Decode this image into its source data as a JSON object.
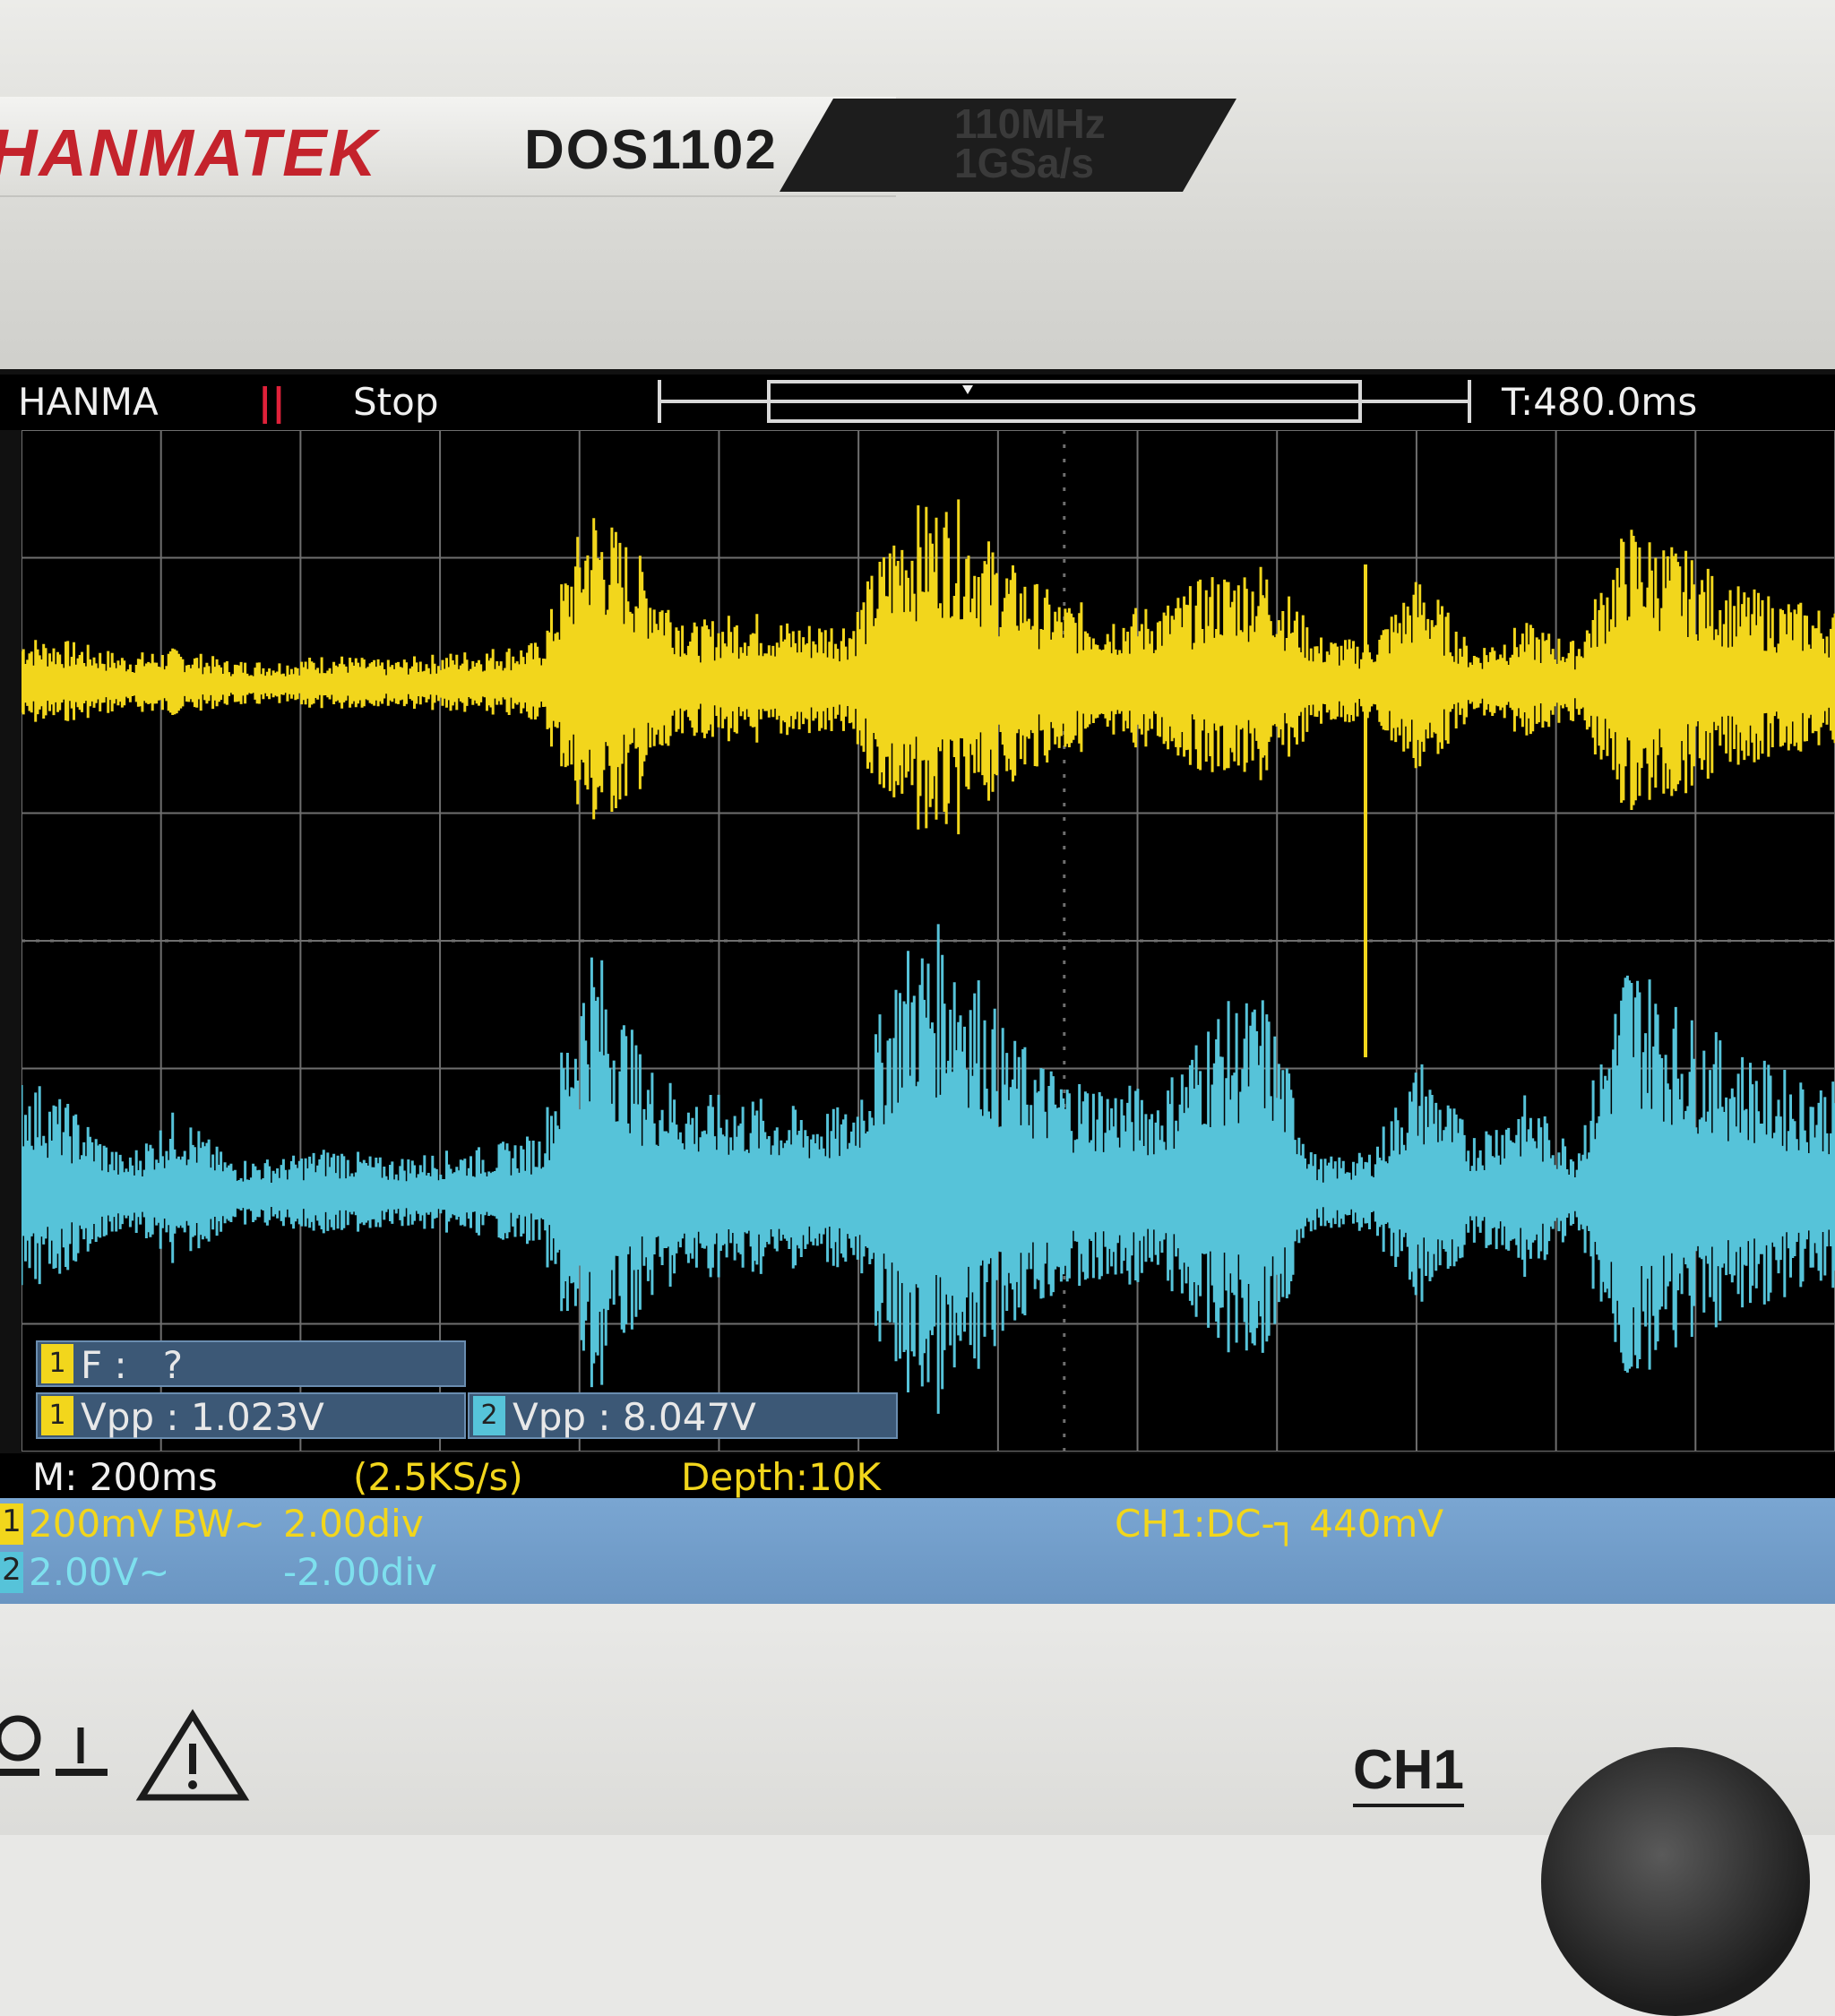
{
  "device": {
    "brand": "HANMATEK",
    "model": "DOS1102",
    "spec_line1": "110MHz",
    "spec_line2": "1GSa/s",
    "channel_button": "CH1"
  },
  "status_bar": {
    "logo": "HANMA",
    "run_icon": "||",
    "run_state": "Stop",
    "trigger_time": "T:480.0ms"
  },
  "measurements": {
    "frequency": {
      "channel": "1",
      "label": "F :",
      "value": "?"
    },
    "ch1_vpp": {
      "channel": "1",
      "label": "Vpp :",
      "value": "1.023V"
    },
    "ch2_vpp": {
      "channel": "2",
      "label": "Vpp :",
      "value": "8.047V"
    }
  },
  "info_row": {
    "timebase": "M: 200ms",
    "sample_rate": "(2.5KS/s)",
    "depth": "Depth:10K"
  },
  "channels": [
    {
      "id": "1",
      "scale": "200mV",
      "bw": "BW~",
      "offset": "2.00div",
      "color": "#f2d61c"
    },
    {
      "id": "2",
      "scale": "2.00V~",
      "bw": "",
      "offset": "-2.00div",
      "color": "#56c3d9"
    }
  ],
  "trigger": {
    "text": "CH1:DC-",
    "level": "440mV"
  },
  "colors": {
    "ch1": "#f2d61c",
    "ch2": "#56c3d9",
    "grid": "#6f6f6f",
    "screen_bg": "#000000"
  },
  "chart_data": {
    "type": "line",
    "grid_divisions": {
      "x": 13,
      "y": 8
    },
    "grid": true,
    "series": [
      {
        "name": "1",
        "envelope_div": [
          0.4,
          0.35,
          0.25,
          0.3,
          0.2,
          0.2,
          0.25,
          0.2,
          0.25,
          0.3,
          0.35,
          1.5,
          1.0,
          0.5,
          0.6,
          0.5,
          0.55,
          1.4,
          1.5,
          1.0,
          0.7,
          0.6,
          0.65,
          0.9,
          1.0,
          0.4,
          0.35,
          0.9,
          0.3,
          0.5,
          0.35,
          1.3,
          1.1,
          0.8,
          0.7,
          0.6
        ]
      },
      {
        "name": "2",
        "envelope_div": [
          1.0,
          0.7,
          0.3,
          0.7,
          0.3,
          0.3,
          0.4,
          0.3,
          0.35,
          0.4,
          0.5,
          2.1,
          1.1,
          0.8,
          0.8,
          0.7,
          0.7,
          2.0,
          2.2,
          1.3,
          1.0,
          0.9,
          0.85,
          1.5,
          1.6,
          0.3,
          0.35,
          1.1,
          0.5,
          0.8,
          0.4,
          2.0,
          1.5,
          1.2,
          1.0,
          0.9
        ]
      }
    ]
  }
}
